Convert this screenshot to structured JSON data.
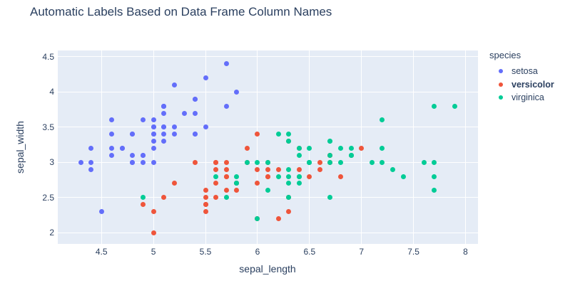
{
  "title": "Automatic Labels Based on Data Frame Column Names",
  "colors": {
    "plot_background": "#e5ecf6",
    "gridline": "#ffffff",
    "text": "#2a3f5f",
    "setosa": "#636efa",
    "versicolor": "#ef553b",
    "virginica": "#00cc96"
  },
  "legend": {
    "title": "species",
    "items": [
      {
        "label": "setosa",
        "color": "#636efa",
        "bold": false
      },
      {
        "label": "versicolor",
        "color": "#ef553b",
        "bold": true
      },
      {
        "label": "virginica",
        "color": "#00cc96",
        "bold": false
      }
    ]
  },
  "chart_data": {
    "type": "scatter",
    "title": "Automatic Labels Based on Data Frame Column Names",
    "xlabel": "sepal_length",
    "ylabel": "sepal_width",
    "xlim": [
      4.08,
      8.12
    ],
    "ylim": [
      1.84,
      4.59
    ],
    "x_ticks": [
      4.5,
      5,
      5.5,
      6,
      6.5,
      7,
      7.5,
      8
    ],
    "y_ticks": [
      2,
      2.5,
      3,
      3.5,
      4,
      4.5
    ],
    "grid": true,
    "legend_position": "right",
    "series": [
      {
        "name": "setosa",
        "color": "#636efa",
        "points": [
          [
            5.1,
            3.5
          ],
          [
            4.9,
            3.0
          ],
          [
            4.7,
            3.2
          ],
          [
            4.6,
            3.1
          ],
          [
            5.0,
            3.6
          ],
          [
            5.4,
            3.9
          ],
          [
            4.6,
            3.4
          ],
          [
            5.0,
            3.4
          ],
          [
            4.4,
            2.9
          ],
          [
            4.9,
            3.1
          ],
          [
            5.4,
            3.7
          ],
          [
            4.8,
            3.4
          ],
          [
            4.8,
            3.0
          ],
          [
            4.3,
            3.0
          ],
          [
            5.8,
            4.0
          ],
          [
            5.7,
            4.4
          ],
          [
            5.4,
            3.9
          ],
          [
            5.1,
            3.5
          ],
          [
            5.7,
            3.8
          ],
          [
            5.1,
            3.8
          ],
          [
            5.4,
            3.4
          ],
          [
            5.1,
            3.7
          ],
          [
            4.6,
            3.6
          ],
          [
            5.1,
            3.3
          ],
          [
            4.8,
            3.4
          ],
          [
            5.0,
            3.0
          ],
          [
            5.0,
            3.4
          ],
          [
            5.2,
            3.5
          ],
          [
            5.2,
            3.4
          ],
          [
            4.7,
            3.2
          ],
          [
            4.8,
            3.1
          ],
          [
            5.4,
            3.4
          ],
          [
            5.2,
            4.1
          ],
          [
            5.5,
            4.2
          ],
          [
            4.9,
            3.1
          ],
          [
            5.0,
            3.2
          ],
          [
            5.5,
            3.5
          ],
          [
            4.9,
            3.6
          ],
          [
            4.4,
            3.0
          ],
          [
            5.1,
            3.4
          ],
          [
            5.0,
            3.5
          ],
          [
            4.5,
            2.3
          ],
          [
            4.4,
            3.2
          ],
          [
            5.0,
            3.5
          ],
          [
            5.1,
            3.8
          ],
          [
            4.8,
            3.0
          ],
          [
            5.1,
            3.8
          ],
          [
            4.6,
            3.2
          ],
          [
            5.3,
            3.7
          ],
          [
            5.0,
            3.3
          ]
        ]
      },
      {
        "name": "versicolor",
        "color": "#ef553b",
        "points": [
          [
            7.0,
            3.2
          ],
          [
            6.4,
            3.2
          ],
          [
            6.9,
            3.1
          ],
          [
            5.5,
            2.3
          ],
          [
            6.5,
            2.8
          ],
          [
            5.7,
            2.8
          ],
          [
            6.3,
            3.3
          ],
          [
            4.9,
            2.4
          ],
          [
            6.6,
            2.9
          ],
          [
            5.2,
            2.7
          ],
          [
            5.0,
            2.0
          ],
          [
            5.9,
            3.0
          ],
          [
            6.0,
            2.2
          ],
          [
            6.1,
            2.9
          ],
          [
            5.6,
            2.9
          ],
          [
            6.7,
            3.1
          ],
          [
            5.6,
            3.0
          ],
          [
            5.8,
            2.7
          ],
          [
            6.2,
            2.2
          ],
          [
            5.6,
            2.5
          ],
          [
            5.9,
            3.2
          ],
          [
            6.1,
            2.8
          ],
          [
            6.3,
            2.5
          ],
          [
            6.1,
            2.8
          ],
          [
            6.4,
            2.9
          ],
          [
            6.6,
            3.0
          ],
          [
            6.8,
            2.8
          ],
          [
            6.7,
            3.0
          ],
          [
            6.0,
            2.9
          ],
          [
            5.7,
            2.6
          ],
          [
            5.5,
            2.4
          ],
          [
            5.5,
            2.4
          ],
          [
            5.8,
            2.7
          ],
          [
            6.0,
            2.7
          ],
          [
            5.4,
            3.0
          ],
          [
            6.0,
            3.4
          ],
          [
            6.7,
            3.1
          ],
          [
            6.3,
            2.3
          ],
          [
            5.6,
            3.0
          ],
          [
            5.5,
            2.5
          ],
          [
            5.5,
            2.6
          ],
          [
            6.1,
            3.0
          ],
          [
            5.8,
            2.6
          ],
          [
            5.0,
            2.3
          ],
          [
            5.6,
            2.7
          ],
          [
            5.7,
            3.0
          ],
          [
            5.7,
            2.9
          ],
          [
            6.2,
            2.9
          ],
          [
            5.1,
            2.5
          ],
          [
            5.7,
            2.8
          ]
        ]
      },
      {
        "name": "virginica",
        "color": "#00cc96",
        "points": [
          [
            6.3,
            3.3
          ],
          [
            5.8,
            2.7
          ],
          [
            7.1,
            3.0
          ],
          [
            6.3,
            2.9
          ],
          [
            6.5,
            3.0
          ],
          [
            7.6,
            3.0
          ],
          [
            4.9,
            2.5
          ],
          [
            7.3,
            2.9
          ],
          [
            6.7,
            2.5
          ],
          [
            7.2,
            3.6
          ],
          [
            6.5,
            3.2
          ],
          [
            6.4,
            2.7
          ],
          [
            6.8,
            3.0
          ],
          [
            5.7,
            2.5
          ],
          [
            5.8,
            2.8
          ],
          [
            6.4,
            3.2
          ],
          [
            6.5,
            3.0
          ],
          [
            7.7,
            3.8
          ],
          [
            7.7,
            2.6
          ],
          [
            6.0,
            2.2
          ],
          [
            6.9,
            3.2
          ],
          [
            5.6,
            2.8
          ],
          [
            7.7,
            2.8
          ],
          [
            6.3,
            2.7
          ],
          [
            6.7,
            3.3
          ],
          [
            7.2,
            3.2
          ],
          [
            6.2,
            2.8
          ],
          [
            6.1,
            3.0
          ],
          [
            6.4,
            2.8
          ],
          [
            7.2,
            3.0
          ],
          [
            7.4,
            2.8
          ],
          [
            7.9,
            3.8
          ],
          [
            6.4,
            2.8
          ],
          [
            6.3,
            2.8
          ],
          [
            6.1,
            2.6
          ],
          [
            7.7,
            3.0
          ],
          [
            6.3,
            3.4
          ],
          [
            6.4,
            3.1
          ],
          [
            6.0,
            3.0
          ],
          [
            6.9,
            3.1
          ],
          [
            6.7,
            3.1
          ],
          [
            6.9,
            3.1
          ],
          [
            5.8,
            2.7
          ],
          [
            6.8,
            3.2
          ],
          [
            6.7,
            3.3
          ],
          [
            6.7,
            3.0
          ],
          [
            6.3,
            2.5
          ],
          [
            6.5,
            3.0
          ],
          [
            6.2,
            3.4
          ],
          [
            5.9,
            3.0
          ]
        ]
      }
    ]
  }
}
